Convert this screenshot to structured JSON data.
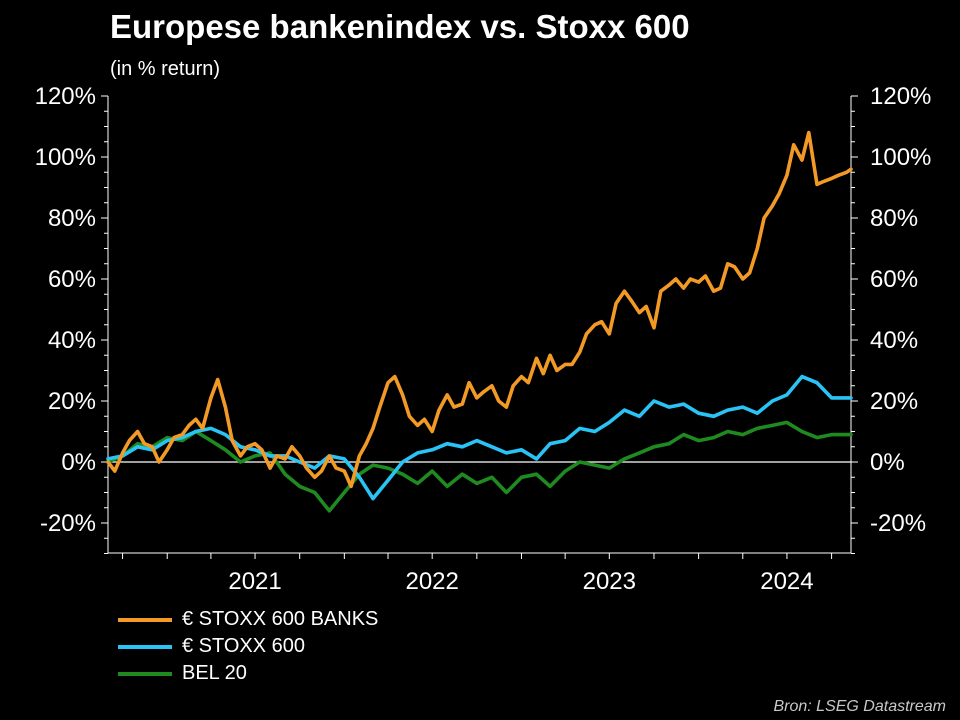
{
  "title": "Europese bankenindex vs. Stoxx 600",
  "subtitle": "(in % return)",
  "source": "Bron: LSEG Datastream",
  "chart_data": {
    "type": "line",
    "title": "Europese bankenindex vs. Stoxx 600",
    "subtitle": "(in % return)",
    "xlabel": "",
    "ylabel": "",
    "x_ticks": [
      "2021",
      "2022",
      "2023",
      "2024"
    ],
    "x_range": [
      "2020-09",
      "2024-11"
    ],
    "y_ticks": [
      "120%",
      "100%",
      "80%",
      "60%",
      "40%",
      "20%",
      "0%",
      "-20%"
    ],
    "ylim": [
      -30,
      120
    ],
    "y_unit": "%",
    "y_axis_both_sides": true,
    "zero_line": true,
    "grid": false,
    "legend_position": "bottom-left",
    "background": "#000000",
    "series": [
      {
        "name": "€ STOXX 600 BANKS",
        "color": "#F39A26",
        "x": [
          "2020-09-01",
          "2020-09-15",
          "2020-10-01",
          "2020-10-15",
          "2020-11-01",
          "2020-11-15",
          "2020-12-01",
          "2020-12-15",
          "2021-01-01",
          "2021-01-15",
          "2021-02-01",
          "2021-02-15",
          "2021-03-01",
          "2021-03-15",
          "2021-04-01",
          "2021-04-15",
          "2021-05-01",
          "2021-05-15",
          "2021-06-01",
          "2021-06-15",
          "2021-07-01",
          "2021-07-15",
          "2021-08-01",
          "2021-08-15",
          "2021-09-01",
          "2021-09-15",
          "2021-10-01",
          "2021-10-15",
          "2021-11-01",
          "2021-11-15",
          "2021-12-01",
          "2021-12-15",
          "2022-01-01",
          "2022-01-15",
          "2022-02-01",
          "2022-02-15",
          "2022-03-01",
          "2022-03-15",
          "2022-04-01",
          "2022-04-15",
          "2022-05-01",
          "2022-05-15",
          "2022-06-01",
          "2022-06-15",
          "2022-07-01",
          "2022-07-15",
          "2022-08-01",
          "2022-08-15",
          "2022-09-01",
          "2022-09-15",
          "2022-10-01",
          "2022-10-15",
          "2022-11-01",
          "2022-11-15",
          "2022-12-01",
          "2022-12-15",
          "2023-01-01",
          "2023-01-15",
          "2023-02-01",
          "2023-02-15",
          "2023-03-01",
          "2023-03-15",
          "2023-04-01",
          "2023-04-15",
          "2023-05-01",
          "2023-05-15",
          "2023-06-01",
          "2023-06-15",
          "2023-07-01",
          "2023-07-15",
          "2023-08-01",
          "2023-08-15",
          "2023-09-01",
          "2023-09-15",
          "2023-10-01",
          "2023-10-15",
          "2023-11-01",
          "2023-11-15",
          "2023-12-01",
          "2023-12-15",
          "2024-01-01",
          "2024-01-15",
          "2024-02-01",
          "2024-02-15",
          "2024-03-01",
          "2024-03-15",
          "2024-04-01",
          "2024-04-15",
          "2024-05-01",
          "2024-05-15",
          "2024-06-01",
          "2024-06-15",
          "2024-07-01",
          "2024-07-15",
          "2024-08-01",
          "2024-08-15",
          "2024-09-01",
          "2024-09-15",
          "2024-10-01",
          "2024-10-15",
          "2024-11-01",
          "2024-11-10"
        ],
        "values": [
          0,
          -3,
          3,
          7,
          10,
          6,
          5,
          0,
          4,
          8,
          9,
          12,
          14,
          11,
          21,
          27,
          18,
          7,
          2,
          5,
          6,
          4,
          -2,
          2,
          1,
          5,
          2,
          -2,
          -5,
          -3,
          2,
          -2,
          -3,
          -8,
          2,
          6,
          11,
          18,
          26,
          28,
          22,
          15,
          12,
          14,
          10,
          17,
          22,
          18,
          19,
          26,
          21,
          23,
          25,
          20,
          18,
          25,
          28,
          26,
          34,
          29,
          35,
          30,
          32,
          32,
          36,
          42,
          45,
          46,
          42,
          52,
          56,
          53,
          49,
          51,
          44,
          56,
          58,
          60,
          57,
          60,
          59,
          61,
          56,
          57,
          65,
          64,
          60,
          62,
          70,
          80,
          84,
          88,
          94,
          104,
          99,
          108,
          91,
          92,
          93,
          94,
          95,
          96
        ],
        "note_unused": ""
      },
      {
        "name": "€ STOXX 600",
        "color": "#29C4F5",
        "x": [
          "2020-09-01",
          "2020-10-01",
          "2020-11-01",
          "2020-12-01",
          "2021-01-01",
          "2021-02-01",
          "2021-03-01",
          "2021-04-01",
          "2021-05-01",
          "2021-06-01",
          "2021-07-01",
          "2021-08-01",
          "2021-09-01",
          "2021-10-01",
          "2021-11-01",
          "2021-12-01",
          "2022-01-01",
          "2022-02-01",
          "2022-03-01",
          "2022-04-01",
          "2022-05-01",
          "2022-06-01",
          "2022-07-01",
          "2022-08-01",
          "2022-09-01",
          "2022-10-01",
          "2022-11-01",
          "2022-12-01",
          "2023-01-01",
          "2023-02-01",
          "2023-03-01",
          "2023-04-01",
          "2023-05-01",
          "2023-06-01",
          "2023-07-01",
          "2023-08-01",
          "2023-09-01",
          "2023-10-01",
          "2023-11-01",
          "2023-12-01",
          "2024-01-01",
          "2024-02-01",
          "2024-03-01",
          "2024-04-01",
          "2024-05-01",
          "2024-06-01",
          "2024-07-01",
          "2024-08-01",
          "2024-09-01",
          "2024-10-01",
          "2024-11-01",
          "2024-11-10"
        ],
        "values": [
          1,
          2,
          5,
          4,
          7,
          8,
          10,
          11,
          9,
          5,
          4,
          2,
          2,
          0,
          -2,
          2,
          1,
          -5,
          -12,
          -6,
          0,
          3,
          4,
          6,
          5,
          7,
          5,
          3,
          4,
          1,
          6,
          7,
          11,
          10,
          13,
          17,
          15,
          20,
          18,
          19,
          16,
          15,
          17,
          18,
          16,
          20,
          22,
          28,
          26,
          21,
          21,
          21
        ]
      },
      {
        "name": "BEL 20",
        "color": "#1E8A20",
        "x": [
          "2020-09-01",
          "2020-10-01",
          "2020-11-01",
          "2020-12-01",
          "2021-01-01",
          "2021-02-01",
          "2021-03-01",
          "2021-04-01",
          "2021-05-01",
          "2021-06-01",
          "2021-07-01",
          "2021-08-01",
          "2021-09-01",
          "2021-10-01",
          "2021-11-01",
          "2021-12-01",
          "2022-01-01",
          "2022-02-01",
          "2022-03-01",
          "2022-04-01",
          "2022-05-01",
          "2022-06-01",
          "2022-07-01",
          "2022-08-01",
          "2022-09-01",
          "2022-10-01",
          "2022-11-01",
          "2022-12-01",
          "2023-01-01",
          "2023-02-01",
          "2023-03-01",
          "2023-04-01",
          "2023-05-01",
          "2023-06-01",
          "2023-07-01",
          "2023-08-01",
          "2023-09-01",
          "2023-10-01",
          "2023-11-01",
          "2023-12-01",
          "2024-01-01",
          "2024-02-01",
          "2024-03-01",
          "2024-04-01",
          "2024-05-01",
          "2024-06-01",
          "2024-07-01",
          "2024-08-01",
          "2024-09-01",
          "2024-10-01",
          "2024-11-01",
          "2024-11-10"
        ],
        "values": [
          0,
          2,
          6,
          5,
          8,
          7,
          10,
          7,
          4,
          0,
          2,
          3,
          -4,
          -8,
          -10,
          -16,
          -10,
          -4,
          -1,
          -2,
          -4,
          -7,
          -3,
          -8,
          -4,
          -7,
          -5,
          -10,
          -5,
          -4,
          -8,
          -3,
          0,
          -1,
          -2,
          1,
          3,
          5,
          6,
          9,
          7,
          8,
          10,
          9,
          11,
          12,
          13,
          10,
          8,
          9,
          9,
          9
        ]
      }
    ]
  }
}
